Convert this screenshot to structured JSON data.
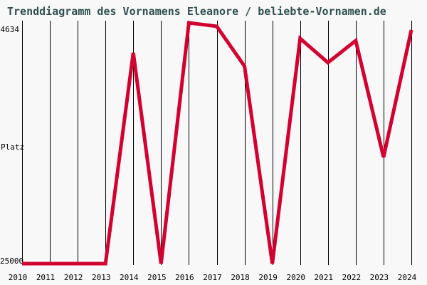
{
  "page": {
    "background_color": "#f8f8f8",
    "title_color": "#2f4f4f",
    "gridline_color": "#000000",
    "accent_color": "#d10030"
  },
  "chart_data": {
    "type": "line",
    "title": "Trenddiagramm des Vornamens Eleanore / beliebte-Vornamen.de",
    "categories": [
      "2010",
      "2011",
      "2012",
      "2013",
      "2014",
      "2015",
      "2016",
      "2017",
      "2018",
      "2019",
      "2020",
      "2021",
      "2022",
      "2023",
      "2024"
    ],
    "series": [
      {
        "name": "Eleanore",
        "color": "#d10030",
        "values": [
          25000,
          25000,
          25000,
          25000,
          7160,
          25000,
          4634,
          4930,
          8300,
          25000,
          5960,
          8000,
          6140,
          16000,
          5240
        ]
      }
    ],
    "xlabel": "",
    "ylabel": "Platz",
    "yaxis": {
      "top_label": "4634",
      "bottom_label": "25000",
      "min": 4634,
      "max": 25000,
      "inverted": true
    },
    "ylim": [
      4634,
      25000
    ],
    "grid": "vertical year gridlines only",
    "legend": "none"
  }
}
